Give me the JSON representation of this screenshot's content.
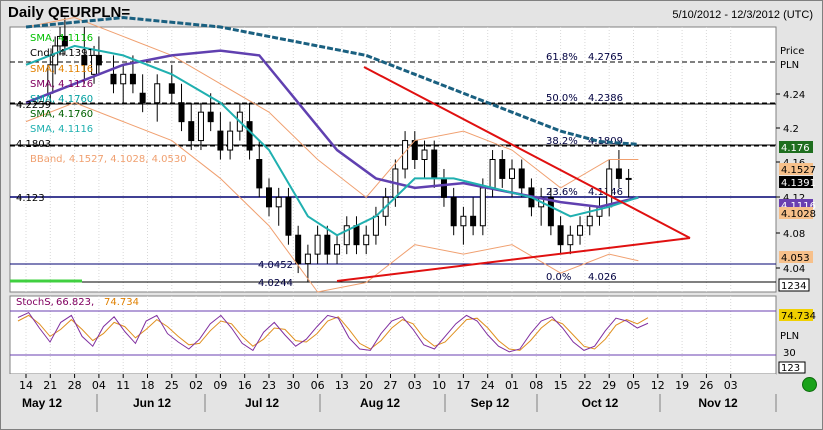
{
  "header": {
    "title": "Daily QEURPLN=",
    "date_range": "5/10/2012 - 12/3/2012 (UTC)"
  },
  "price_panel": {
    "axis_title": "Price",
    "axis_unit": "PLN",
    "y_ticks": [
      "4.24",
      "4.2",
      "4.16",
      "4.12",
      "4.08",
      "4.04"
    ],
    "price_labels": [
      {
        "text": "4.176",
        "bg": "#1e6e1e",
        "color": "#ffffff"
      },
      {
        "text": "4.1527",
        "bg": "#f7c08a",
        "color": "#000000"
      },
      {
        "text": "4.1391",
        "bg": "#000000",
        "color": "#ffffff"
      },
      {
        "text": "4.1116",
        "bg": "#6a3fb0",
        "color": "#ffffff"
      },
      {
        "text": "4.1028",
        "bg": "#f7c08a",
        "color": "#000000"
      },
      {
        "text": "4.053",
        "bg": "#f7c08a",
        "color": "#000000"
      },
      {
        "text": "1234",
        "bg": "#ffffff",
        "color": "#000000"
      }
    ],
    "legend": [
      {
        "text": "SMA, 4.1116",
        "color": "#00c000"
      },
      {
        "text": "Cndl, 4.1391",
        "color": "#000000"
      },
      {
        "text": "SMA, 4.1116",
        "color": "#e08000"
      },
      {
        "text": "SMA, 4.1116",
        "color": "#800060"
      },
      {
        "text": "SMA, 4.1760",
        "color": "#00a0a0"
      },
      {
        "text": "SMA, 4.1760",
        "color": "#006000"
      },
      {
        "text": "SMA, 4.1116",
        "color": "#20b0b0"
      },
      {
        "text": "4.1803",
        "color": "#000000"
      },
      {
        "text": "BBand, 4.1527, 4.1028, 4.0530",
        "color": "#f0a070"
      }
    ],
    "left_labels": [
      "4.2259",
      "4.123"
    ],
    "fib_levels": [
      {
        "label": "61.8%",
        "value": "4.2765"
      },
      {
        "label": "50.0%",
        "value": "4.2386"
      },
      {
        "label": "38.2%",
        "value": "4.1809"
      },
      {
        "label": "23.6%",
        "value": "4.1346"
      },
      {
        "label": "0.0%",
        "value": "4.026"
      }
    ],
    "hlines": [
      "4.0452",
      "4.0244"
    ]
  },
  "stoch_panel": {
    "legend_name": "StochS",
    "k": "66.823",
    "d": "74.734",
    "axis_unit": "PLN",
    "y_ticks": [
      "30"
    ],
    "labels": [
      {
        "text": "74.734",
        "bg": "#f0d000",
        "color": "#000000"
      },
      {
        "text": "123",
        "bg": "#ffffff",
        "color": "#000000"
      }
    ]
  },
  "x_axis": {
    "days": [
      "14",
      "21",
      "28",
      "04",
      "11",
      "18",
      "25",
      "02",
      "09",
      "16",
      "23",
      "30",
      "06",
      "13",
      "20",
      "27",
      "03",
      "10",
      "17",
      "24",
      "01",
      "08",
      "15",
      "22",
      "29",
      "05",
      "12",
      "19",
      "26",
      "03"
    ],
    "months": [
      "May 12",
      "Jun 12",
      "Jul 12",
      "Aug 12",
      "Sep 12",
      "Oct 12",
      "Nov 12"
    ]
  },
  "colors": {
    "candle": "#000000",
    "sma_slow": "#1a6080",
    "sma_mid": "#6040b0",
    "sma_fast": "#20b0b0",
    "bband": "#f0a070",
    "trend": "#e01010",
    "stoch_k": "#8030a0",
    "stoch_d": "#e09020"
  },
  "chart_data": {
    "type": "line",
    "title": "Daily QEURPLN=",
    "ylabel": "PLN",
    "ylim": [
      4.02,
      4.28
    ],
    "series": [
      {
        "name": "Cndl",
        "x": [
          "14",
          "21",
          "28",
          "04",
          "11",
          "18",
          "25",
          "02",
          "09",
          "16",
          "23",
          "30",
          "06",
          "13",
          "20",
          "27",
          "03",
          "10",
          "17",
          "24",
          "01",
          "08",
          "15",
          "22",
          "29"
        ],
        "values": [
          4.25,
          4.29,
          4.3,
          4.28,
          4.26,
          4.24,
          4.22,
          4.22,
          4.18,
          4.17,
          4.2,
          4.13,
          4.06,
          4.07,
          4.07,
          4.09,
          4.17,
          4.13,
          4.09,
          4.15,
          4.13,
          4.07,
          4.09,
          4.12,
          4.139
        ]
      },
      {
        "name": "StochS",
        "values": [
          70,
          80,
          40,
          60,
          70,
          30,
          60,
          80,
          40,
          70,
          60,
          20,
          40,
          60,
          30,
          70,
          80,
          50,
          20,
          70,
          60,
          30,
          20,
          70,
          66.823
        ]
      }
    ]
  }
}
